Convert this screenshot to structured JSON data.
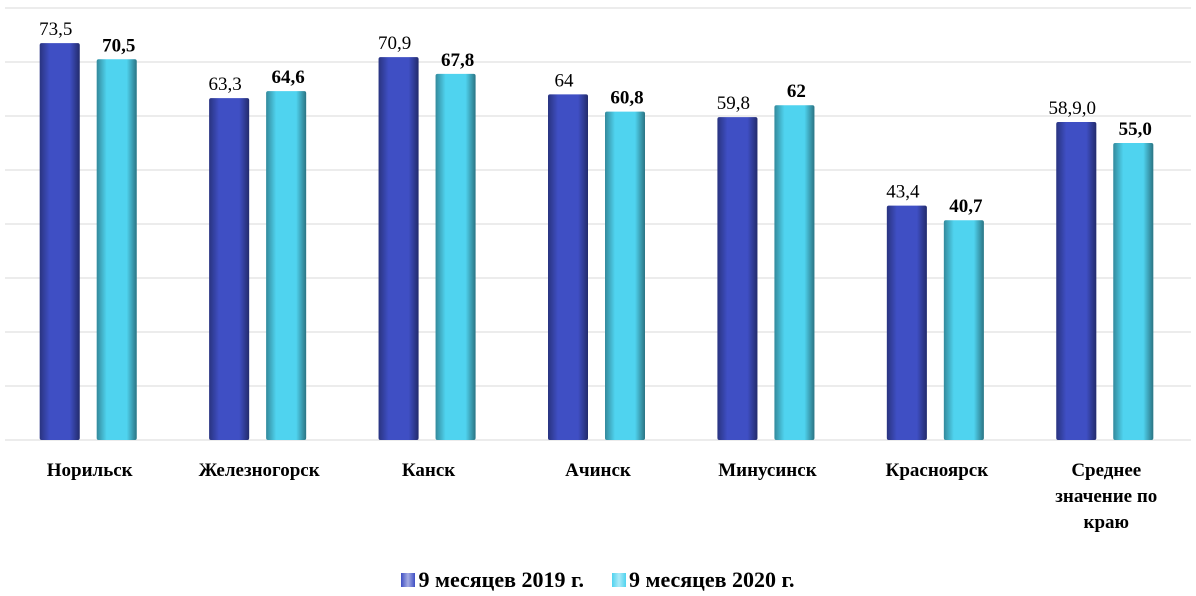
{
  "chart_data": {
    "type": "bar",
    "categories": [
      "Норильск",
      "Железногорск",
      "Канск",
      "Ачинск",
      "Минусинск",
      "Красноярск",
      "Среднее значение по краю"
    ],
    "series": [
      {
        "name": "9 месяцев 2019 г.",
        "color": "#3f4fc4",
        "values": [
          73.5,
          63.3,
          70.9,
          64,
          59.8,
          43.4,
          58.9
        ],
        "value_labels": [
          "73,5",
          "63,3",
          "70,9",
          "64",
          "59,8",
          "43,4",
          "58,9,0"
        ]
      },
      {
        "name": "9 месяцев 2020 г.",
        "color": "#4fd3ef",
        "values": [
          70.5,
          64.6,
          67.8,
          60.8,
          62,
          40.7,
          55.0
        ],
        "value_labels": [
          "70,5",
          "64,6",
          "67,8",
          "60,8",
          "62",
          "40,7",
          "55,0"
        ]
      }
    ],
    "ylim": [
      0,
      80
    ],
    "yticks": [
      0,
      10,
      20,
      30,
      40,
      50,
      60,
      70,
      80
    ],
    "grid": true
  }
}
